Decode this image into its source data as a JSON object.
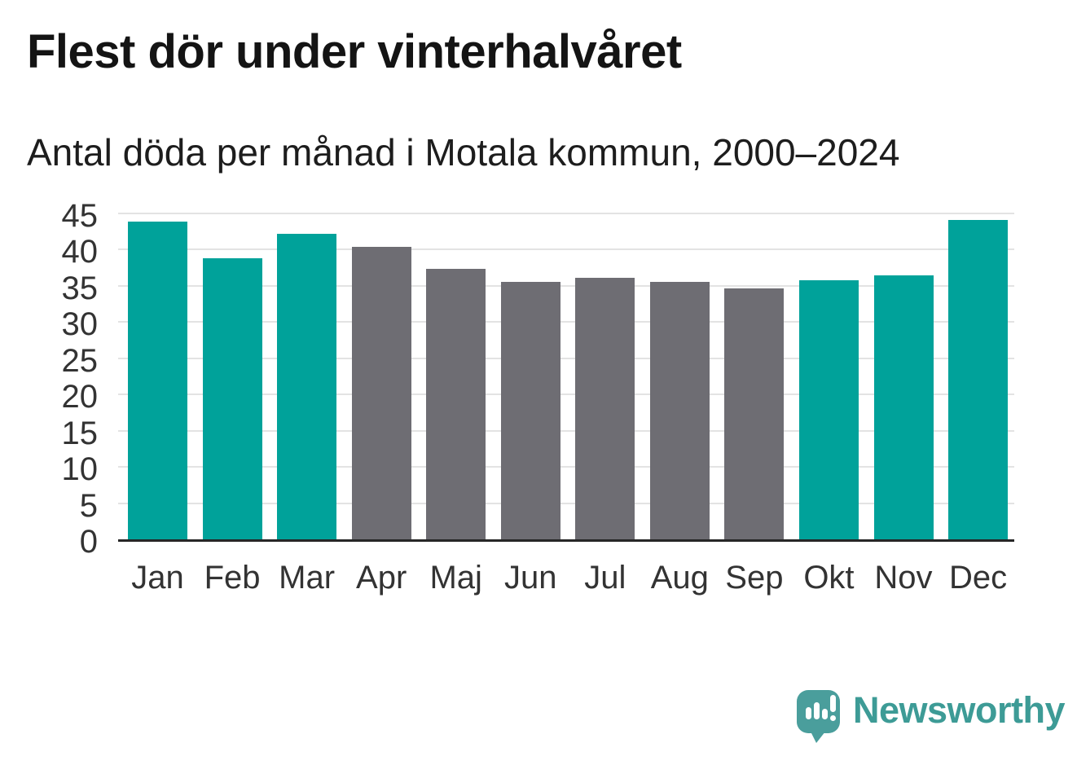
{
  "title": "Flest dör under vinterhalvåret",
  "subtitle": "Antal döda per månad i Motala kommun, 2000–2024",
  "chart_data": {
    "type": "bar",
    "title": "Flest dör under vinterhalvåret",
    "subtitle": "Antal döda per månad i Motala kommun, 2000–2024",
    "categories": [
      "Jan",
      "Feb",
      "Mar",
      "Apr",
      "Maj",
      "Jun",
      "Jul",
      "Aug",
      "Sep",
      "Okt",
      "Nov",
      "Dec"
    ],
    "values": [
      43.9,
      38.8,
      42.2,
      40.4,
      37.4,
      35.6,
      36.1,
      35.5,
      34.6,
      35.8,
      36.5,
      44.1
    ],
    "groups": [
      "winter",
      "winter",
      "winter",
      "summer",
      "summer",
      "summer",
      "summer",
      "summer",
      "summer",
      "winter",
      "winter",
      "winter"
    ],
    "palette": {
      "winter": "#00a29a",
      "summer": "#6e6d73"
    },
    "xlabel": "",
    "ylabel": "",
    "ylim": [
      0,
      45
    ],
    "yticks": [
      0,
      5,
      10,
      15,
      20,
      25,
      30,
      35,
      40,
      45
    ],
    "grid": "horizontal",
    "gridline_color": "#e3e3e3",
    "axis_line_color": "#262626",
    "tick_label_color": "#333333",
    "legend": "none"
  },
  "branding": {
    "logo_text": "Newsworthy",
    "logo_color": "#3d9b96",
    "logo_icon": "speech-bubble-bar-chart-icon"
  }
}
